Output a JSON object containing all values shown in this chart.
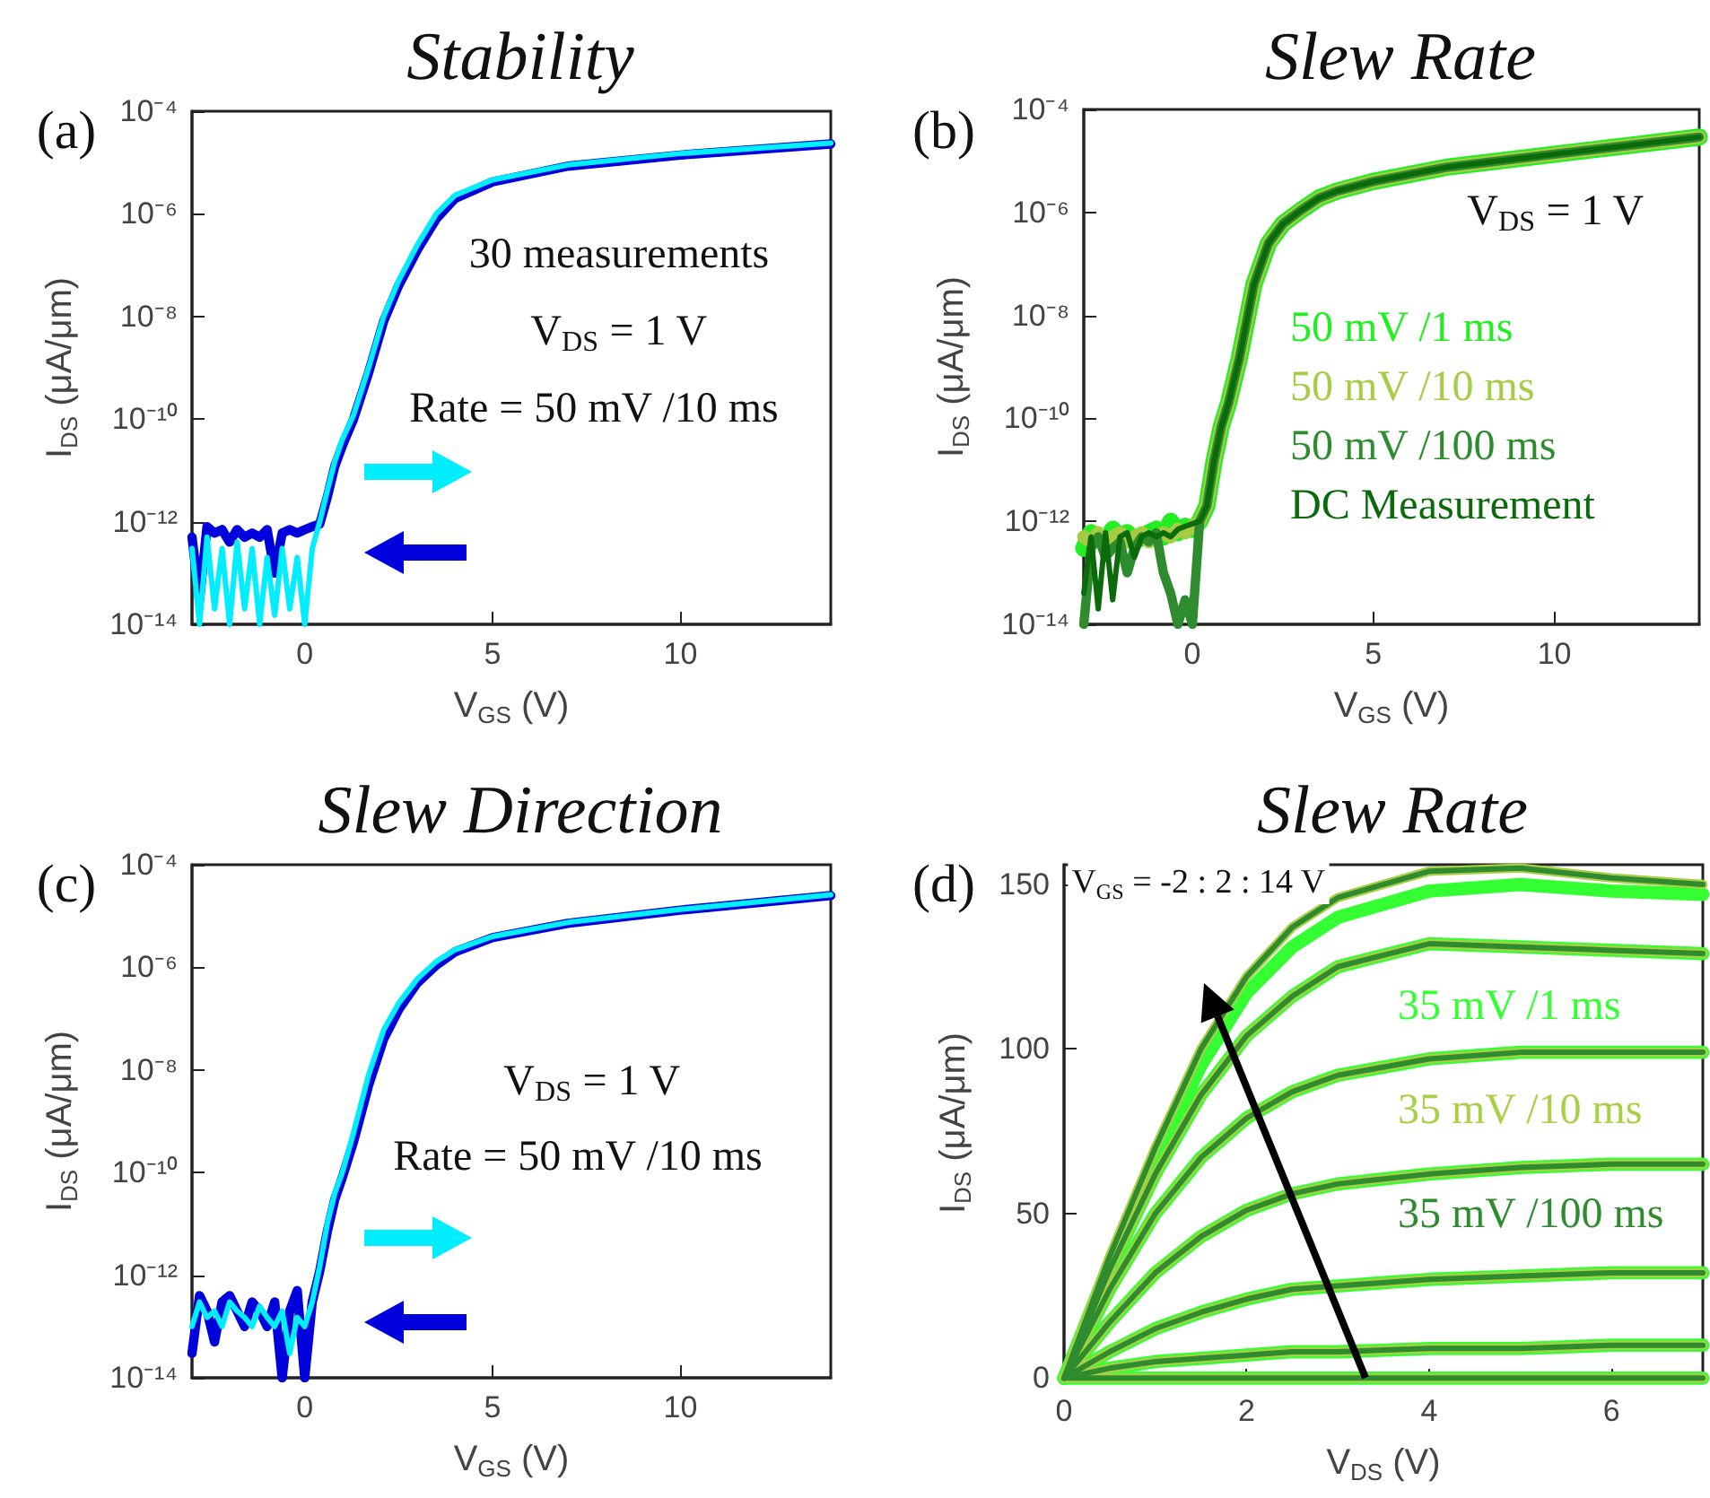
{
  "chart_data": [
    {
      "type": "line",
      "title": "Stability",
      "xlabel": "V$_{GS}$ (V)",
      "ylabel": "I$_{DS}$ (μA/μm)",
      "log": "y",
      "marker": "none",
      "annotations": [
        "(a)",
        "30 measurements",
        "V$_{DS}$ = 1 V",
        "Rate = 50 mV /10 ms"
      ],
      "xlim": [
        -3,
        14
      ],
      "xticks": [
        0,
        5,
        10
      ],
      "ylim": [
        1e-14,
        0.0001
      ],
      "yticks": [
        {
          "value": 1e-14,
          "label": "10⁻¹⁴"
        },
        {
          "value": 1e-12,
          "label": "10⁻¹²"
        },
        {
          "value": 1e-10,
          "label": "10⁻¹⁰"
        },
        {
          "value": 1e-08,
          "label": "10⁻⁸"
        },
        {
          "value": 1e-06,
          "label": "10⁻⁶"
        },
        {
          "value": 0.0001,
          "label": "10⁻⁴"
        }
      ],
      "x": [
        -3,
        -2.8,
        -2.6,
        -2.4,
        -2.2,
        -2,
        -1.8,
        -1.6,
        -1.4,
        -1.2,
        -1,
        -0.8,
        -0.6,
        -0.4,
        -0.2,
        0,
        0.2,
        0.4,
        0.6,
        0.8,
        1,
        1.3,
        1.7,
        2.1,
        2.5,
        3,
        3.5,
        4,
        5,
        7,
        10,
        14
      ],
      "series": [
        {
          "color": "#0000dd",
          "values": [
            5e-13,
            3e-14,
            8e-13,
            6e-13,
            7e-13,
            4e-13,
            7e-13,
            5e-13,
            6e-13,
            5e-13,
            7e-13,
            1e-13,
            6e-13,
            7e-13,
            6e-13,
            7e-13,
            8e-13,
            9e-13,
            3e-12,
            1.2e-11,
            3e-11,
            1e-10,
            8e-10,
            8e-09,
            4e-08,
            2e-07,
            8e-07,
            2e-06,
            4.2e-06,
            8.5e-06,
            1.4e-05,
            2.3e-05
          ]
        },
        {
          "color": "#00eeff",
          "values": [
            3e-13,
            1e-14,
            5e-13,
            2e-14,
            3e-13,
            1e-14,
            4e-13,
            2e-14,
            3e-13,
            1e-14,
            2e-13,
            1.5e-14,
            3e-13,
            2e-14,
            2e-13,
            1e-14,
            3e-13,
            1e-12,
            4e-12,
            1.5e-11,
            4e-11,
            1.2e-10,
            1e-09,
            1e-08,
            5e-08,
            2.5e-07,
            1e-06,
            2.3e-06,
            4.6e-06,
            9e-06,
            1.5e-05,
            2.4e-05
          ]
        }
      ]
    },
    {
      "type": "line",
      "title": "Slew Rate",
      "xlabel": "V$_{GS}$ (V)",
      "ylabel": "I$_{DS}$ (μA/μm)",
      "log": "y",
      "marker": "none",
      "legend": "right",
      "annotations": [
        "(b)",
        "V$_{DS}$ = 1 V"
      ],
      "xlim": [
        -3,
        14
      ],
      "xticks": [
        0,
        5,
        10
      ],
      "ylim": [
        1e-14,
        0.0001
      ],
      "yticks": [
        {
          "value": 1e-14,
          "label": "10⁻¹⁴"
        },
        {
          "value": 1e-12,
          "label": "10⁻¹²"
        },
        {
          "value": 1e-10,
          "label": "10⁻¹⁰"
        },
        {
          "value": 1e-08,
          "label": "10⁻⁸"
        },
        {
          "value": 1e-06,
          "label": "10⁻⁶"
        },
        {
          "value": 0.0001,
          "label": "10⁻⁴"
        }
      ],
      "x": [
        -3,
        -2.8,
        -2.6,
        -2.4,
        -2.2,
        -2,
        -1.8,
        -1.6,
        -1.4,
        -1.2,
        -1,
        -0.8,
        -0.6,
        -0.4,
        -0.2,
        0,
        0.2,
        0.4,
        0.6,
        0.8,
        1,
        1.3,
        1.7,
        2.1,
        2.5,
        3,
        3.5,
        4,
        5,
        7,
        10,
        14
      ],
      "series": [
        {
          "name": "50 mV /1 ms",
          "color": "#22ee22",
          "values": [
            3e-13,
            6e-13,
            5e-13,
            4e-13,
            7e-13,
            5e-13,
            6e-13,
            4e-13,
            5e-13,
            6e-13,
            7e-13,
            5e-13,
            1e-12,
            6e-13,
            8e-13,
            7e-13,
            1e-12,
            2e-12,
            1.5e-11,
            7e-11,
            2e-10,
            1.5e-09,
            4e-08,
            2.5e-07,
            6e-07,
            1.1e-06,
            1.9e-06,
            2.6e-06,
            4e-06,
            7.5e-06,
            1.35e-05,
            2.9e-05
          ]
        },
        {
          "name": "50 mV /10 ms",
          "color": "#a6cc45",
          "values": [
            5e-13,
            4e-13,
            6e-13,
            3e-13,
            5e-13,
            6e-13,
            4e-13,
            5e-13,
            6e-13,
            4e-13,
            5e-13,
            6e-13,
            5e-13,
            7e-13,
            6e-13,
            8e-13,
            1e-12,
            2e-12,
            1.5e-11,
            7e-11,
            2e-10,
            1.5e-09,
            4e-08,
            2.5e-07,
            6e-07,
            1.1e-06,
            1.9e-06,
            2.6e-06,
            4e-06,
            7.5e-06,
            1.35e-05,
            2.9e-05
          ]
        },
        {
          "name": "50 mV /100 ms",
          "color": "#2e8b2e",
          "values": [
            1e-14,
            3e-13,
            5e-13,
            2e-13,
            3e-13,
            4e-13,
            1e-13,
            3e-13,
            5e-13,
            4e-13,
            6e-13,
            1e-13,
            4e-14,
            1e-14,
            3e-14,
            1e-14,
            1e-12,
            2e-12,
            1.5e-11,
            7e-11,
            2e-10,
            1.5e-09,
            4e-08,
            2.5e-07,
            6e-07,
            1.1e-06,
            1.9e-06,
            2.6e-06,
            4e-06,
            7.5e-06,
            1.35e-05,
            2.9e-05
          ]
        },
        {
          "name": "DC Measurement",
          "color": "#0b6b0b",
          "values": [
            4e-14,
            5e-13,
            2e-14,
            6e-13,
            3e-14,
            5e-13,
            6e-13,
            2e-13,
            5e-13,
            6e-13,
            5e-13,
            6e-13,
            5e-13,
            7e-13,
            8e-13,
            9e-13,
            1e-12,
            2e-12,
            1.5e-11,
            7e-11,
            2e-10,
            1.5e-09,
            4e-08,
            2.5e-07,
            6e-07,
            1.1e-06,
            1.9e-06,
            2.6e-06,
            4e-06,
            7.5e-06,
            1.35e-05,
            2.9e-05
          ]
        }
      ]
    },
    {
      "type": "line",
      "title": "Slew Direction",
      "xlabel": "V$_{GS}$ (V)",
      "ylabel": "I$_{DS}$ (μA/μm)",
      "log": "y",
      "marker": "none",
      "annotations": [
        "(c)",
        "V$_{DS}$ = 1 V",
        "Rate = 50 mV /10 ms"
      ],
      "xlim": [
        -3,
        14
      ],
      "xticks": [
        0,
        5,
        10
      ],
      "ylim": [
        1e-14,
        0.0001
      ],
      "yticks": [
        {
          "value": 1e-14,
          "label": "10⁻¹⁴"
        },
        {
          "value": 1e-12,
          "label": "10⁻¹²"
        },
        {
          "value": 1e-10,
          "label": "10⁻¹⁰"
        },
        {
          "value": 1e-08,
          "label": "10⁻⁸"
        },
        {
          "value": 1e-06,
          "label": "10⁻⁶"
        },
        {
          "value": 0.0001,
          "label": "10⁻⁴"
        }
      ],
      "x": [
        -3,
        -2.8,
        -2.6,
        -2.4,
        -2.2,
        -2,
        -1.8,
        -1.6,
        -1.4,
        -1.2,
        -1,
        -0.8,
        -0.6,
        -0.4,
        -0.2,
        0,
        0.2,
        0.4,
        0.6,
        0.8,
        1,
        1.3,
        1.7,
        2.1,
        2.5,
        3,
        3.5,
        4,
        5,
        7,
        10,
        14
      ],
      "series": [
        {
          "color": "#0000dd",
          "values": [
            3e-14,
            4e-13,
            2e-13,
            5e-14,
            3e-13,
            4e-13,
            2e-13,
            1e-13,
            3e-13,
            2e-13,
            1e-13,
            3e-13,
            1e-14,
            2e-13,
            5e-13,
            1e-14,
            3e-13,
            1.2e-12,
            7e-12,
            3e-11,
            8e-11,
            4e-10,
            5e-09,
            4e-08,
            1.5e-07,
            5e-07,
            1.1e-06,
            2e-06,
            3.8e-06,
            7.2e-06,
            1.3e-05,
            2.5e-05
          ]
        },
        {
          "color": "#00eeff",
          "values": [
            1e-13,
            3e-13,
            1.5e-13,
            2e-13,
            1e-13,
            3e-13,
            2e-13,
            1.5e-13,
            1e-13,
            2.5e-13,
            1.5e-13,
            1e-13,
            2e-13,
            3e-14,
            1.5e-13,
            1e-13,
            3e-13,
            1.5e-12,
            1e-11,
            4e-11,
            1e-10,
            6e-10,
            8e-09,
            6e-08,
            2e-07,
            6e-07,
            1.3e-06,
            2.2e-06,
            4e-06,
            7.5e-06,
            1.35e-05,
            2.6e-05
          ]
        }
      ]
    },
    {
      "type": "line",
      "title": "Slew Rate",
      "xlabel": "V$_{DS}$ (V)",
      "ylabel": "I$_{DS}$ (μA/μm)",
      "marker": "none",
      "legend": "right",
      "annotations": [
        "(d)",
        "V$_{GS}$ = -2 : 2 : 14 V"
      ],
      "xlim": [
        0,
        7
      ],
      "xticks": [
        0,
        2,
        4,
        6
      ],
      "ylim": [
        -1,
        156
      ],
      "yticks": [
        0,
        50,
        100,
        150
      ],
      "x": [
        0,
        0.5,
        1,
        1.5,
        2,
        2.5,
        3,
        4,
        5,
        6,
        7
      ],
      "series": [
        {
          "name": "35 mV /1 ms",
          "color": "#33ff33",
          "values": [
            0,
            35,
            66,
            95,
            117,
            131,
            140,
            148,
            150,
            148,
            147
          ]
        },
        {
          "color": "#33ff33",
          "values": [
            0,
            33,
            62,
            86,
            104,
            116,
            125,
            132,
            131,
            130,
            129
          ]
        },
        {
          "color": "#33ff33",
          "values": [
            0,
            27,
            50,
            67,
            79,
            87,
            92,
            97,
            99,
            99,
            99
          ]
        },
        {
          "color": "#33ff33",
          "values": [
            0,
            17,
            32,
            43,
            51,
            56,
            59,
            62,
            64,
            65,
            65
          ]
        },
        {
          "color": "#33ff33",
          "values": [
            0,
            8,
            15,
            20,
            24,
            27,
            28,
            30,
            31,
            32,
            32
          ]
        },
        {
          "color": "#33ff33",
          "values": [
            0,
            3,
            5,
            6,
            7,
            8,
            8,
            9,
            9,
            10,
            10
          ]
        },
        {
          "color": "#33ff33",
          "values": [
            0,
            0,
            0,
            0,
            0,
            0,
            0,
            0,
            0,
            0,
            0
          ]
        },
        {
          "name": "35 mV /10 ms",
          "color": "#a8cf45",
          "values": [
            0,
            37,
            70,
            100,
            122,
            137,
            146,
            154,
            155,
            152,
            150
          ]
        },
        {
          "color": "#a8cf45",
          "values": [
            0,
            33,
            62,
            86,
            104,
            116,
            125,
            132,
            131,
            130,
            129
          ]
        },
        {
          "color": "#a8cf45",
          "values": [
            0,
            27,
            50,
            67,
            79,
            87,
            92,
            97,
            99,
            99,
            99
          ]
        },
        {
          "color": "#a8cf45",
          "values": [
            0,
            17,
            32,
            43,
            51,
            56,
            59,
            62,
            64,
            65,
            65
          ]
        },
        {
          "color": "#a8cf45",
          "values": [
            0,
            8,
            15,
            20,
            24,
            27,
            28,
            30,
            31,
            32,
            32
          ]
        },
        {
          "color": "#a8cf45",
          "values": [
            0,
            3,
            5,
            6,
            7,
            8,
            8,
            9,
            9,
            10,
            10
          ]
        },
        {
          "color": "#a8cf45",
          "values": [
            0,
            0,
            0,
            0,
            0,
            0,
            0,
            0,
            0,
            0,
            0
          ]
        },
        {
          "name": "35 mV /100 ms",
          "color": "#2e8b2e",
          "values": [
            0,
            37,
            70,
            100,
            122,
            137,
            146,
            154,
            155,
            152,
            150
          ]
        },
        {
          "color": "#2e8b2e",
          "values": [
            0,
            33,
            62,
            86,
            104,
            116,
            125,
            132,
            131,
            130,
            129
          ]
        },
        {
          "color": "#2e8b2e",
          "values": [
            0,
            27,
            50,
            67,
            79,
            87,
            92,
            97,
            99,
            99,
            99
          ]
        },
        {
          "color": "#2e8b2e",
          "values": [
            0,
            17,
            32,
            43,
            51,
            56,
            59,
            62,
            64,
            65,
            65
          ]
        },
        {
          "color": "#2e8b2e",
          "values": [
            0,
            8,
            15,
            20,
            24,
            27,
            28,
            30,
            31,
            32,
            32
          ]
        },
        {
          "color": "#2e8b2e",
          "values": [
            0,
            3,
            5,
            6,
            7,
            8,
            8,
            9,
            9,
            10,
            10
          ]
        },
        {
          "color": "#2e8b2e",
          "values": [
            0,
            0,
            0,
            0,
            0,
            0,
            0,
            0,
            0,
            0,
            0
          ]
        }
      ]
    }
  ]
}
